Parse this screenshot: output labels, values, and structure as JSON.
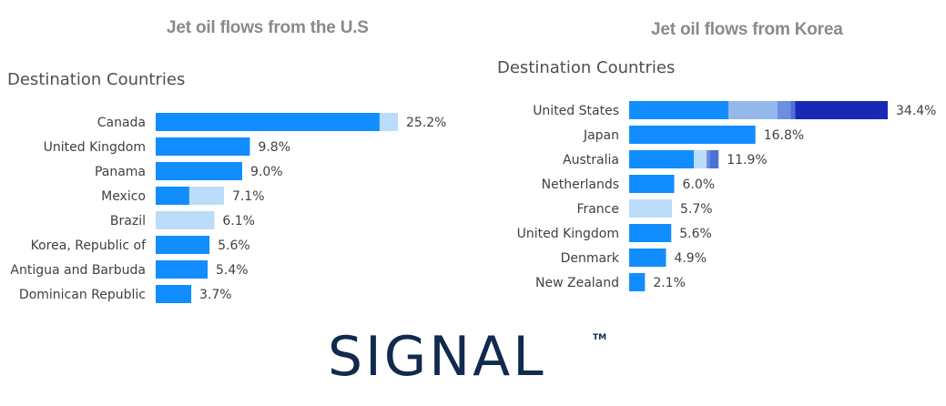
{
  "chart_data": [
    {
      "type": "bar",
      "orientation": "horizontal",
      "stacked": true,
      "title": "Jet oil flows from the U.S",
      "subtitle": "Destination Countries",
      "categories": [
        "Canada",
        "United Kingdom",
        "Panama",
        "Mexico",
        "Brazil",
        "Korea, Republic of",
        "Antigua and Barbuda",
        "Dominican Republic"
      ],
      "value_labels": [
        "25.2%",
        "9.8%",
        "9.0%",
        "7.1%",
        "6.1%",
        "5.6%",
        "5.4%",
        "3.7%"
      ],
      "xlim": [
        0,
        25.2
      ],
      "series": [
        {
          "name": "segment 1",
          "color": "#118dff",
          "values": [
            23.3,
            9.8,
            9.0,
            3.5,
            0,
            5.6,
            5.4,
            3.7
          ]
        },
        {
          "name": "segment 2",
          "color": "#bbdcfa",
          "values": [
            1.9,
            0,
            0,
            3.6,
            6.1,
            0,
            0,
            0
          ]
        }
      ]
    },
    {
      "type": "bar",
      "orientation": "horizontal",
      "stacked": true,
      "title": "Jet oil flows from Korea",
      "subtitle": "Destination Countries",
      "categories": [
        "United States",
        "Japan",
        "Australia",
        "Netherlands",
        "France",
        "United Kingdom",
        "Denmark",
        "New Zealand"
      ],
      "value_labels": [
        "34.4%",
        "16.8%",
        "11.9%",
        "6.0%",
        "5.7%",
        "5.6%",
        "4.9%",
        "2.1%"
      ],
      "xlim": [
        0,
        34.4
      ],
      "series": [
        {
          "name": "segment 1",
          "color": "#118dff",
          "values": [
            13.2,
            16.8,
            8.6,
            6.0,
            0,
            5.6,
            4.9,
            2.1
          ]
        },
        {
          "name": "segment 2",
          "color": "#94b8ea",
          "values": [
            6.5,
            0,
            0,
            0,
            0,
            0,
            0,
            0
          ]
        },
        {
          "name": "segment 3",
          "color": "#bbdcfa",
          "values": [
            0,
            0,
            1.7,
            0,
            5.7,
            0,
            0,
            0
          ]
        },
        {
          "name": "segment 4",
          "color": "#6b8ee0",
          "values": [
            1.8,
            0,
            0.4,
            0,
            0,
            0,
            0,
            0
          ]
        },
        {
          "name": "segment 5",
          "color": "#4e6fd4",
          "values": [
            0.6,
            0,
            1.2,
            0,
            0,
            0,
            0,
            0
          ]
        },
        {
          "name": "segment 6",
          "color": "#1a28b8",
          "values": [
            12.3,
            0,
            0,
            0,
            0,
            0,
            0,
            0
          ]
        }
      ]
    }
  ],
  "logo": {
    "text": "SIGNAL",
    "trademark": "TM"
  }
}
